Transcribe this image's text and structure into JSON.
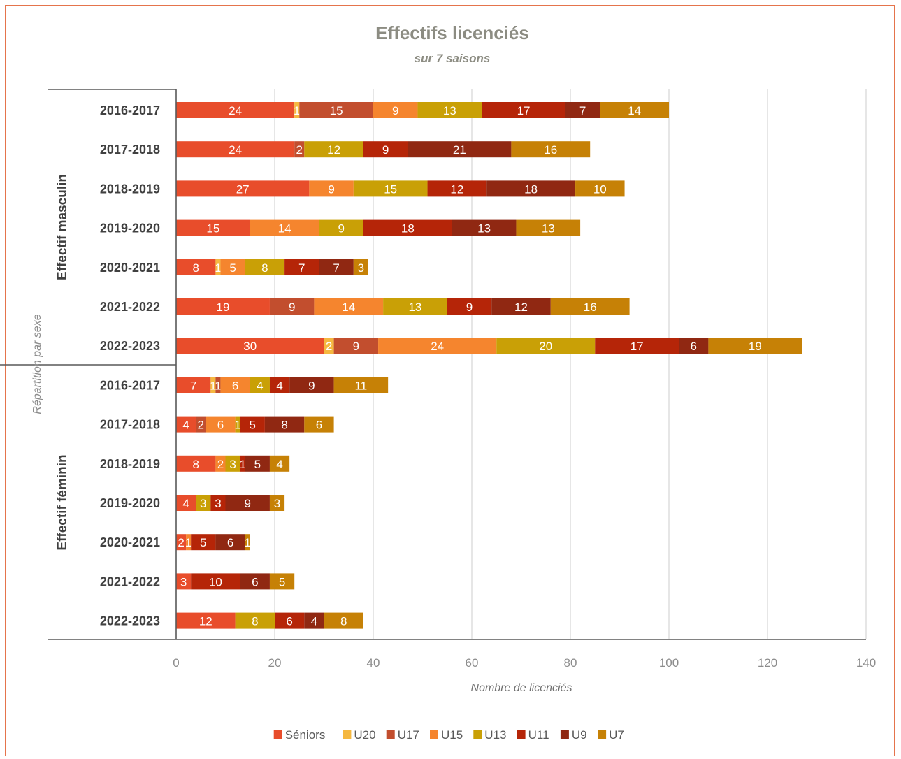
{
  "chart_data": {
    "type": "bar",
    "orientation": "horizontal",
    "stacked": true,
    "title": "Effectifs licenciés",
    "subtitle": "sur 7 saisons",
    "xlabel": "Nombre de licenciés",
    "ylabel": "Répartition par sexe",
    "xlim": [
      0,
      140
    ],
    "xticks": [
      0,
      20,
      40,
      60,
      80,
      100,
      120,
      140
    ],
    "grid": "vertical",
    "legend_position": "bottom",
    "groups": [
      {
        "name": "Effectif masculin",
        "categories": [
          "2016-2017",
          "2017-2018",
          "2018-2019",
          "2019-2020",
          "2020-2021",
          "2021-2022",
          "2022-2023"
        ]
      },
      {
        "name": "Effectif féminin",
        "categories": [
          "2016-2017",
          "2017-2018",
          "2018-2019",
          "2019-2020",
          "2020-2021",
          "2021-2022",
          "2022-2023"
        ]
      }
    ],
    "series": [
      {
        "name": "Séniors",
        "color": "#E84D2B",
        "values": [
          24,
          24,
          27,
          15,
          8,
          19,
          30,
          7,
          4,
          8,
          4,
          2,
          3,
          12
        ]
      },
      {
        "name": "U20",
        "color": "#F5B840",
        "values": [
          1,
          0,
          0,
          0,
          1,
          0,
          2,
          1,
          0,
          0,
          0,
          0,
          0,
          0
        ]
      },
      {
        "name": "U17",
        "color": "#C24E2E",
        "values": [
          15,
          2,
          0,
          0,
          0,
          9,
          9,
          1,
          2,
          0,
          0,
          0,
          0,
          0
        ]
      },
      {
        "name": "U15",
        "color": "#F5852E",
        "values": [
          9,
          0,
          9,
          14,
          5,
          14,
          24,
          6,
          6,
          2,
          0,
          1,
          0,
          0
        ]
      },
      {
        "name": "U13",
        "color": "#C9A006",
        "values": [
          13,
          12,
          15,
          9,
          8,
          13,
          20,
          4,
          1,
          3,
          3,
          0,
          0,
          8
        ]
      },
      {
        "name": "U11",
        "color": "#B52508",
        "values": [
          17,
          9,
          12,
          18,
          7,
          9,
          17,
          4,
          5,
          1,
          3,
          5,
          10,
          6
        ]
      },
      {
        "name": "U9",
        "color": "#902812",
        "values": [
          7,
          21,
          18,
          13,
          7,
          12,
          6,
          9,
          8,
          5,
          9,
          6,
          6,
          4
        ]
      },
      {
        "name": "U7",
        "color": "#C68106",
        "values": [
          14,
          16,
          10,
          13,
          3,
          16,
          19,
          11,
          6,
          4,
          3,
          1,
          5,
          8
        ]
      }
    ]
  }
}
